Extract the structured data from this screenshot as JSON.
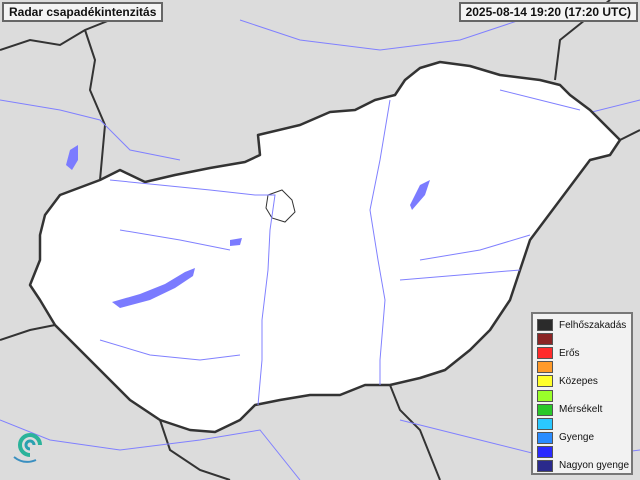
{
  "title": "Radar csapadékintenzitás",
  "timestamp": "2025-08-14 19:20 (17:20 UTC)",
  "colors": {
    "land": "#ffffff",
    "background": "#dcdcdc",
    "border": "#333333",
    "water": "#7b7bff"
  },
  "legend": [
    {
      "label": "Felhőszakadás",
      "color": "#2b2b2b"
    },
    {
      "label": "",
      "color": "#8b2525"
    },
    {
      "label": "Erős",
      "color": "#ff2a2a"
    },
    {
      "label": "",
      "color": "#ff9a2a"
    },
    {
      "label": "Közepes",
      "color": "#ffff2a"
    },
    {
      "label": "",
      "color": "#9aff2a"
    },
    {
      "label": "Mérsékelt",
      "color": "#2ac82a"
    },
    {
      "label": "",
      "color": "#2ac8ff"
    },
    {
      "label": "Gyenge",
      "color": "#2a8cff"
    },
    {
      "label": "",
      "color": "#2a2aff"
    },
    {
      "label": "Nagyon gyenge",
      "color": "#2a2a8c"
    }
  ],
  "logo_icon": "swirl-logo-icon"
}
